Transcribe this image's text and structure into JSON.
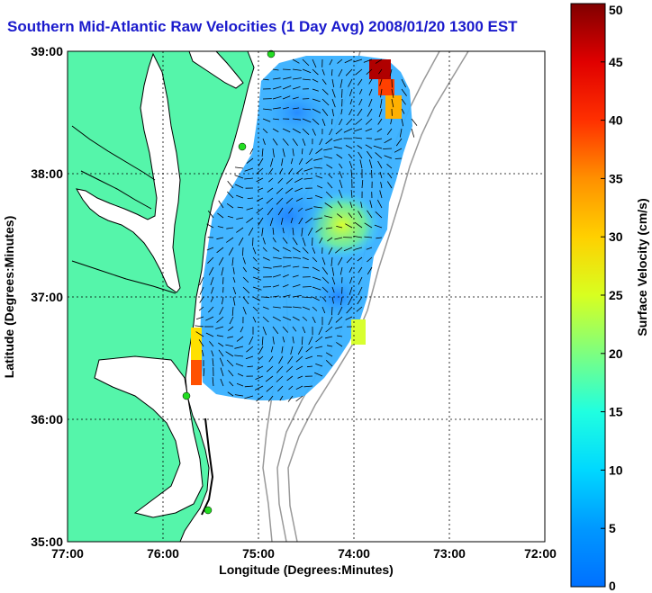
{
  "title": "Southern Mid-Atlantic Raw Velocities (1 Day Avg) 2008/01/20 1300 EST",
  "x_axis": {
    "label": "Longitude (Degrees:Minutes)",
    "ticks": [
      "77:00",
      "76:00",
      "75:00",
      "74:00",
      "73:00",
      "72:00"
    ]
  },
  "y_axis": {
    "label": "Latitude (Degrees:Minutes)",
    "ticks": [
      "39:00",
      "38:00",
      "37:00",
      "36:00",
      "35:00"
    ]
  },
  "colorbar": {
    "label": "Surface Velocity (cm/s)",
    "ticks": [
      "50",
      "45",
      "40",
      "35",
      "30",
      "25",
      "20",
      "15",
      "10",
      "5",
      "0"
    ],
    "range": [
      0,
      50
    ],
    "colormap": "jet"
  },
  "colors": {
    "land": "#55f5aa",
    "water": "#ffffff",
    "coastline": "#000000",
    "bathymetry": "#999999",
    "title": "#1a1acc",
    "station": "#22dd22"
  },
  "grid": "dotted",
  "stations": 4
}
